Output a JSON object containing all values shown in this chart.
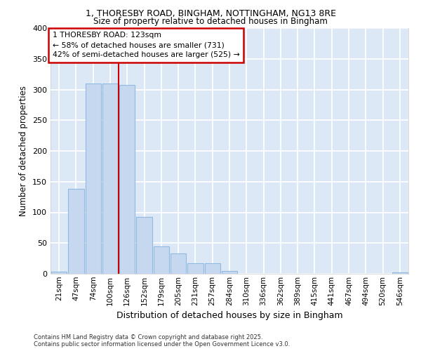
{
  "title_line1": "1, THORESBY ROAD, BINGHAM, NOTTINGHAM, NG13 8RE",
  "title_line2": "Size of property relative to detached houses in Bingham",
  "xlabel": "Distribution of detached houses by size in Bingham",
  "ylabel": "Number of detached properties",
  "bins": [
    "21sqm",
    "47sqm",
    "74sqm",
    "100sqm",
    "126sqm",
    "152sqm",
    "179sqm",
    "205sqm",
    "231sqm",
    "257sqm",
    "284sqm",
    "310sqm",
    "336sqm",
    "362sqm",
    "389sqm",
    "415sqm",
    "441sqm",
    "467sqm",
    "494sqm",
    "520sqm",
    "546sqm"
  ],
  "values": [
    4,
    138,
    310,
    310,
    307,
    93,
    45,
    33,
    17,
    17,
    5,
    0,
    0,
    0,
    0,
    0,
    0,
    0,
    0,
    0,
    2
  ],
  "bar_color": "#c5d8f0",
  "bar_edge_color": "#90b8e0",
  "bg_color": "#dce8f5",
  "grid_color": "#ffffff",
  "annotation_box_color": "#cc0000",
  "property_line_color": "#cc0000",
  "property_line_x": 3.5,
  "annotation_text_line1": "1 THORESBY ROAD: 123sqm",
  "annotation_text_line2": "← 58% of detached houses are smaller (731)",
  "annotation_text_line3": "42% of semi-detached houses are larger (525) →",
  "ylim": [
    0,
    400
  ],
  "yticks": [
    0,
    50,
    100,
    150,
    200,
    250,
    300,
    350,
    400
  ],
  "footer_line1": "Contains HM Land Registry data © Crown copyright and database right 2025.",
  "footer_line2": "Contains public sector information licensed under the Open Government Licence v3.0."
}
